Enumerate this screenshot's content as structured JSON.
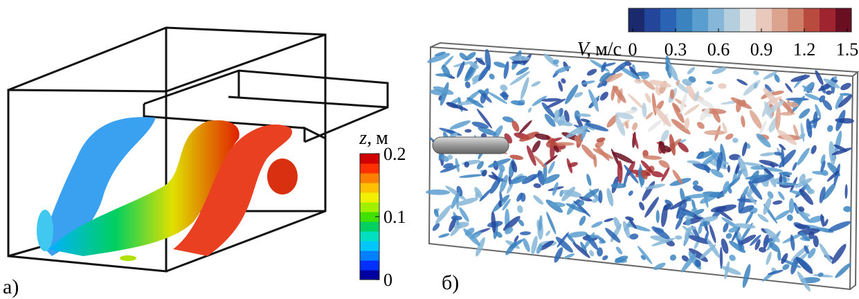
{
  "panels": [
    {
      "label": "а)",
      "colorbar": {
        "symbol": "z,",
        "unit": "м",
        "range": [
          0,
          0.2
        ],
        "ticks": [
          0,
          0.1,
          0.2
        ],
        "orientation": "vertical",
        "colors": [
          "#0000a0",
          "#0030ff",
          "#0080ff",
          "#00c8ff",
          "#00e0c0",
          "#00d060",
          "#40e000",
          "#a0f000",
          "#f0f000",
          "#ffc000",
          "#ff8000",
          "#ff3000",
          "#d00000"
        ]
      }
    },
    {
      "label": "б)",
      "colorbar": {
        "symbol": "V,",
        "unit": "м/с",
        "range": [
          0,
          1.5
        ],
        "ticks": [
          0,
          0.3,
          0.6,
          0.9,
          1.2,
          1.5
        ],
        "orientation": "horizontal",
        "colors": [
          "#1a2a6c",
          "#23459a",
          "#2a63b3",
          "#3b83bf",
          "#5a9ecf",
          "#86b6d8",
          "#b5cfdf",
          "#e6e6e6",
          "#e8c9bc",
          "#dca48e",
          "#cf7e68",
          "#b94a3e",
          "#9e2530",
          "#6a0f22"
        ]
      }
    }
  ]
}
